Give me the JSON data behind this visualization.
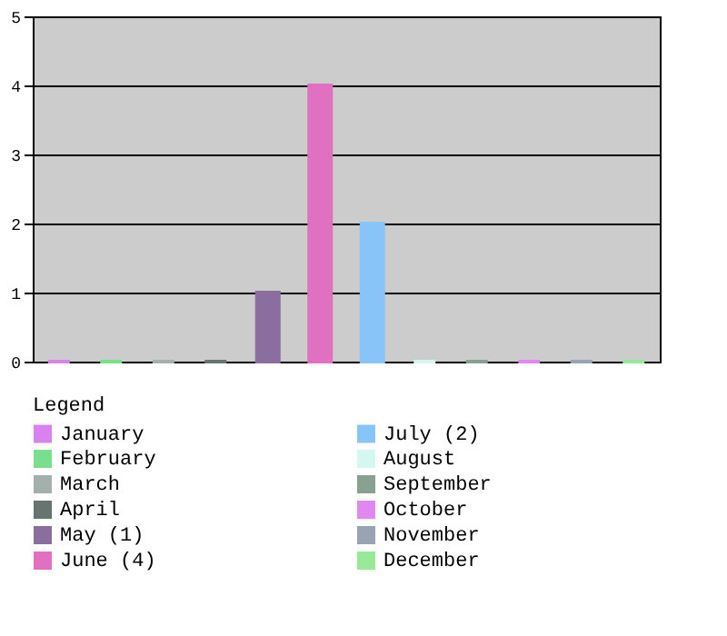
{
  "chart_data": {
    "type": "bar",
    "legend_title": "Legend",
    "categories": [
      null,
      null,
      null,
      null,
      null,
      null,
      null,
      null,
      null,
      null,
      null,
      null
    ],
    "series": [
      {
        "name": "January",
        "color": "#d882f0",
        "values": [
          0,
          null,
          null,
          null,
          null,
          null,
          null,
          null,
          null,
          null,
          null,
          null
        ]
      },
      {
        "name": "February",
        "color": "#78e08c",
        "values": [
          null,
          0,
          null,
          null,
          null,
          null,
          null,
          null,
          null,
          null,
          null,
          null
        ]
      },
      {
        "name": "March",
        "color": "#a4b0ac",
        "values": [
          null,
          null,
          0,
          null,
          null,
          null,
          null,
          null,
          null,
          null,
          null,
          null
        ]
      },
      {
        "name": "April",
        "color": "#687470",
        "values": [
          null,
          null,
          null,
          0,
          null,
          null,
          null,
          null,
          null,
          null,
          null,
          null
        ]
      },
      {
        "name": "May (1)",
        "color": "#8a6ea0",
        "values": [
          null,
          null,
          null,
          null,
          1,
          null,
          null,
          null,
          null,
          null,
          null,
          null
        ]
      },
      {
        "name": "June (4)",
        "color": "#e070c0",
        "values": [
          null,
          null,
          null,
          null,
          null,
          4,
          null,
          null,
          null,
          null,
          null,
          null
        ]
      },
      {
        "name": "July (2)",
        "color": "#88c4f8",
        "values": [
          null,
          null,
          null,
          null,
          null,
          null,
          2,
          null,
          null,
          null,
          null,
          null
        ]
      },
      {
        "name": "August",
        "color": "#d4f8f0",
        "values": [
          null,
          null,
          null,
          null,
          null,
          null,
          null,
          0,
          null,
          null,
          null,
          null
        ]
      },
      {
        "name": "September",
        "color": "#88a090",
        "values": [
          null,
          null,
          null,
          null,
          null,
          null,
          null,
          null,
          0,
          null,
          null,
          null
        ]
      },
      {
        "name": "October",
        "color": "#e088f0",
        "values": [
          null,
          null,
          null,
          null,
          null,
          null,
          null,
          null,
          null,
          0,
          null,
          null
        ]
      },
      {
        "name": "November",
        "color": "#98a4b4",
        "values": [
          null,
          null,
          null,
          null,
          null,
          null,
          null,
          null,
          null,
          null,
          0,
          null
        ]
      },
      {
        "name": "December",
        "color": "#98e898",
        "values": [
          null,
          null,
          null,
          null,
          null,
          null,
          null,
          null,
          null,
          null,
          null,
          0
        ]
      }
    ],
    "ylim": [
      0,
      5
    ],
    "yticks": [
      0,
      1,
      2,
      3,
      4,
      5
    ],
    "grid": "y",
    "legend": "bottom",
    "tick_labels": "y"
  }
}
